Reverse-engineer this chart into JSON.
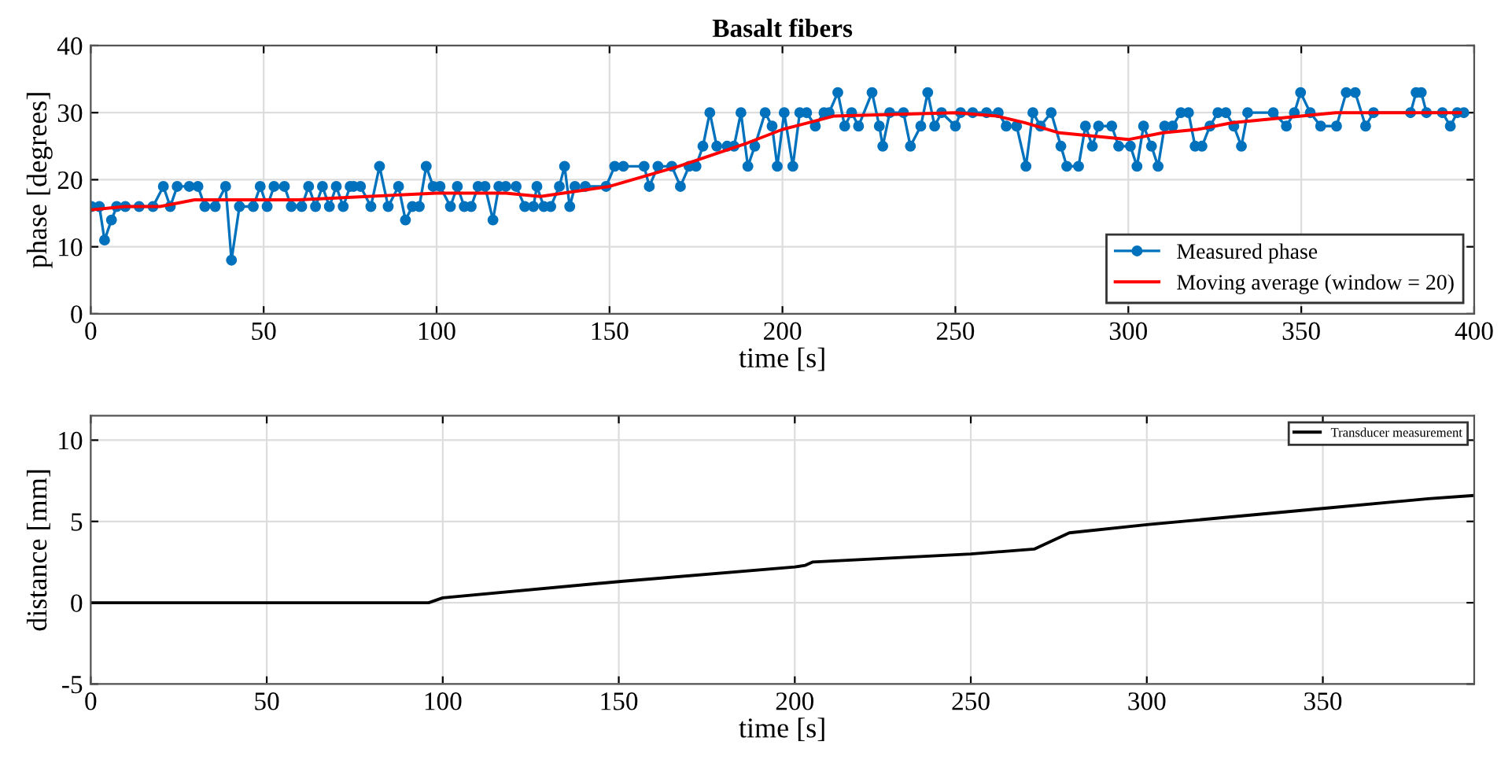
{
  "chart_data": [
    {
      "type": "line",
      "title": "Basalt fibers",
      "xlabel": "time [s]",
      "ylabel": "phase [degrees]",
      "xlim": [
        0,
        400
      ],
      "xticks": [
        0,
        50,
        100,
        150,
        200,
        250,
        300,
        350,
        400
      ],
      "ylim": [
        0,
        40
      ],
      "yticks": [
        0,
        10,
        20,
        30,
        40
      ],
      "grid": true,
      "legend": "bottom right",
      "series": [
        {
          "name": "Measured phase",
          "color": "#0072bd",
          "marker": "circle",
          "x": [
            0.2,
            2.5,
            4,
            6,
            7.5,
            10,
            14,
            18,
            21,
            23,
            25,
            28.5,
            31,
            33,
            36,
            39,
            40.7,
            43,
            47,
            49,
            51,
            53,
            56,
            58,
            61,
            63,
            65,
            67,
            69,
            71,
            73,
            75,
            76,
            78,
            81,
            83.5,
            86,
            89,
            91,
            93,
            95,
            97,
            99,
            101,
            104,
            106,
            108,
            110,
            112,
            114,
            116.3,
            118,
            120,
            123,
            125.5,
            128,
            129,
            131,
            133,
            135.5,
            137,
            138.5,
            140,
            143,
            149,
            151.5,
            154,
            160,
            161.5,
            164,
            168,
            170.5,
            173,
            175,
            177,
            179,
            181,
            184,
            186,
            188,
            190,
            192,
            195,
            197,
            198.5,
            200.5,
            203,
            205,
            207,
            209.5,
            212,
            213.5,
            216,
            218,
            220,
            222,
            225.9,
            228,
            229,
            231,
            235,
            237,
            240,
            242,
            244,
            246,
            250,
            251.5,
            255,
            259,
            262.4,
            264.7,
            267.7,
            270.4,
            272.4,
            274.6,
            277.7,
            280.5,
            282.2,
            285.6,
            287.6,
            289.6,
            291.4,
            295.2,
            297.2,
            300.6,
            302.5,
            304.4,
            306.7,
            308.6,
            310.5,
            312.8,
            315.2,
            317.4,
            319.3,
            321.3,
            323.6,
            325.9,
            328.2,
            330.5,
            332.7,
            334.5,
            341.9,
            345.7,
            348,
            349.8,
            352.6,
            355.6,
            360.2,
            363,
            365.6,
            368.6,
            370.9,
            381.6,
            383.2,
            384.7,
            386.2,
            390.8,
            393.1,
            395.1,
            397
          ],
          "values": [
            16,
            16,
            11,
            14,
            16,
            16,
            16,
            16,
            19,
            16,
            19,
            19,
            19,
            16,
            16,
            19,
            8,
            16,
            16,
            19,
            16,
            19,
            19,
            16,
            16,
            19,
            16,
            19,
            16,
            19,
            16,
            19,
            19,
            19,
            16,
            22,
            16,
            19,
            14,
            16,
            16,
            22,
            19,
            19,
            16,
            19,
            16,
            16,
            19,
            19,
            14,
            19,
            19,
            19,
            16,
            16,
            19,
            16,
            16,
            19,
            22,
            16,
            19,
            19,
            19,
            22,
            22,
            22,
            19,
            22,
            22,
            19,
            22,
            22,
            25,
            30,
            25,
            25,
            25,
            30,
            22,
            25,
            30,
            28,
            22,
            30,
            22,
            30,
            30,
            28,
            30,
            30,
            33,
            28,
            30,
            28,
            33,
            28,
            25,
            30,
            30,
            25,
            28,
            33,
            28,
            30,
            28,
            30,
            30,
            30,
            30,
            28,
            28,
            22,
            30,
            28,
            30,
            25,
            22,
            22,
            28,
            25,
            28,
            28,
            25,
            25,
            22,
            28,
            25,
            22,
            28,
            28,
            30,
            30,
            25,
            25,
            28,
            30,
            30,
            28,
            25,
            30,
            30,
            28,
            30,
            33,
            30,
            28,
            28,
            33,
            33,
            28,
            30,
            30,
            33,
            33,
            30,
            30,
            28,
            30,
            30
          ]
        },
        {
          "name": "Moving average (window = 20)",
          "color": "#ff0000",
          "marker": "none",
          "x": [
            0,
            10,
            20,
            30,
            40,
            60,
            80,
            100,
            120,
            130,
            150,
            170,
            190,
            200,
            215,
            250,
            262,
            270,
            280,
            290,
            300,
            310,
            320,
            330,
            340,
            350,
            360,
            380,
            396
          ],
          "values": [
            15.5,
            16,
            16,
            17,
            17,
            17,
            17.5,
            18,
            18,
            17.5,
            19,
            22,
            25.5,
            27.5,
            29.5,
            30,
            29.5,
            28.5,
            27,
            26.5,
            26,
            27,
            27.5,
            28.5,
            29,
            29.5,
            30,
            30,
            30
          ]
        }
      ]
    },
    {
      "type": "line",
      "xlabel": "time [s]",
      "ylabel": "distance [mm]",
      "xlim": [
        0,
        393
      ],
      "xticks": [
        0,
        50,
        100,
        150,
        200,
        250,
        300,
        350
      ],
      "ylim": [
        -5,
        11.5
      ],
      "yticks": [
        -5,
        0,
        5,
        10
      ],
      "grid": true,
      "legend": "top right",
      "series": [
        {
          "name": "Transducer measurement",
          "color": "#000000",
          "marker": "none",
          "x": [
            0,
            96,
            100,
            150,
            200,
            203,
            205,
            250,
            268,
            278,
            300,
            350,
            380,
            393
          ],
          "values": [
            0,
            0,
            0.3,
            1.3,
            2.2,
            2.3,
            2.5,
            3.0,
            3.3,
            4.3,
            4.8,
            5.8,
            6.4,
            6.6
          ]
        }
      ]
    }
  ]
}
